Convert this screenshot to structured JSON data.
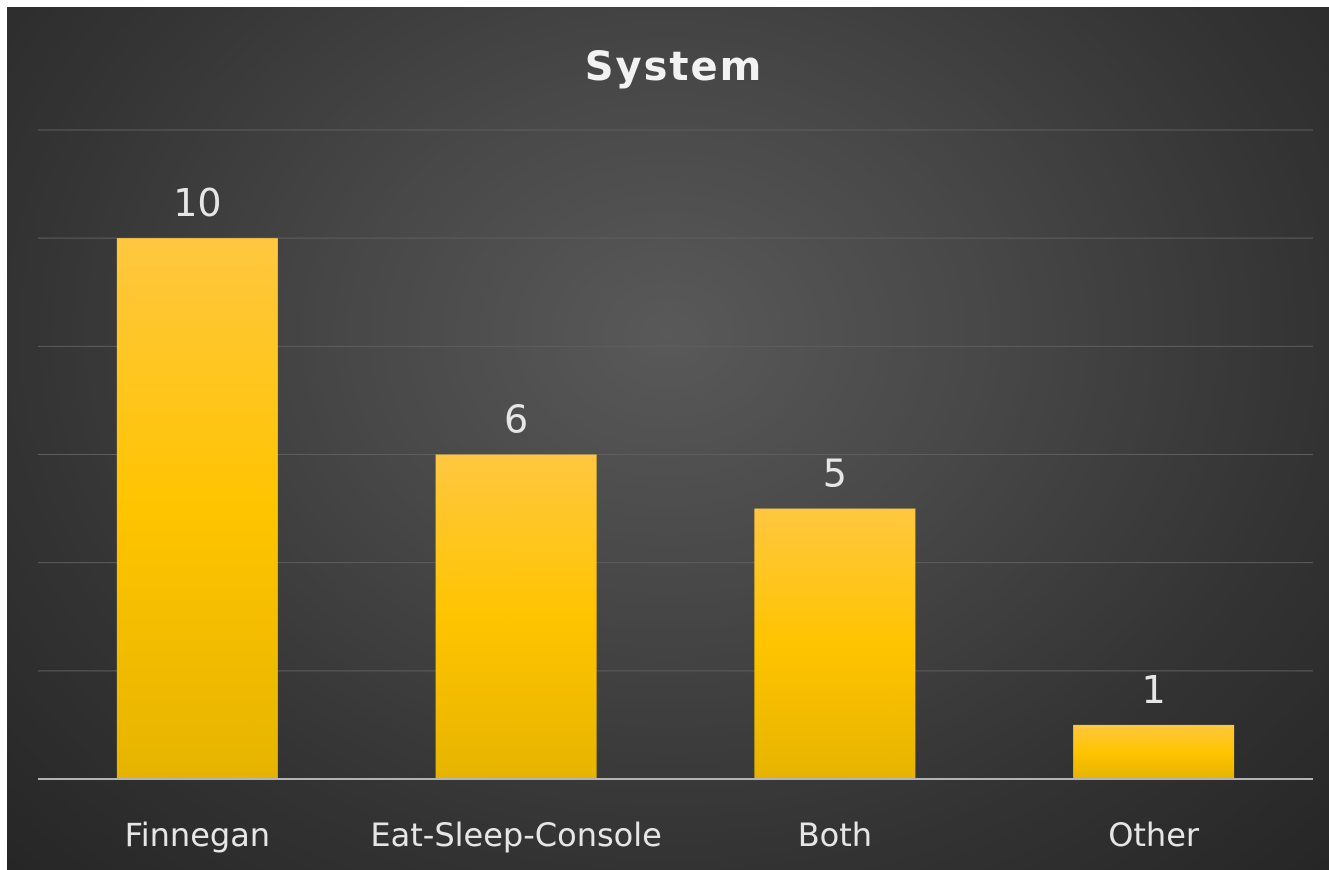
{
  "chart_data": {
    "type": "bar",
    "title": "System",
    "categories": [
      "Finnegan",
      "Eat-Sleep-Console",
      "Both",
      "Other"
    ],
    "values": [
      10,
      6,
      5,
      1
    ],
    "data_labels": [
      "10",
      "6",
      "5",
      "1"
    ],
    "xlabel": "",
    "ylabel": "",
    "ylim": [
      0,
      12
    ],
    "grid": true,
    "legend": "none",
    "colors": {
      "bar_top": "#ffc740",
      "bar_mid": "#ffc400",
      "bar_bottom": "#e6b400",
      "gridline": "#5e5e5e",
      "axis": "#b3b3b3",
      "text": "#e6e6e6"
    }
  }
}
